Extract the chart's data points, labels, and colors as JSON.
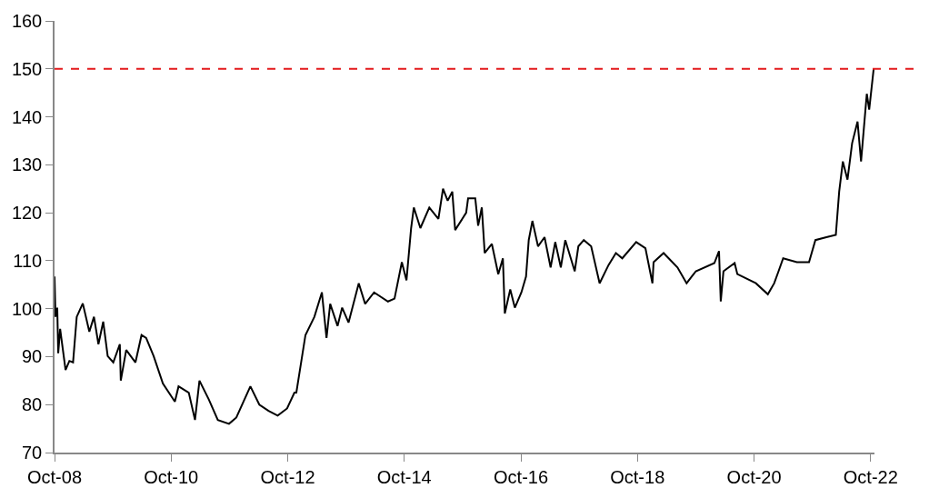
{
  "chart_data": {
    "type": "line",
    "x": [
      "2008-10-01",
      "2008-10-07",
      "2008-10-18",
      "2008-10-24",
      "2008-11-05",
      "2008-12-09",
      "2009-01-02",
      "2009-01-25",
      "2009-02-17",
      "2009-03-27",
      "2009-05-07",
      "2009-06-05",
      "2009-07-03",
      "2009-08-02",
      "2009-08-30",
      "2009-10-04",
      "2009-11-14",
      "2009-11-20",
      "2009-12-24",
      "2010-02-20",
      "2010-03-30",
      "2010-04-28",
      "2010-06-14",
      "2010-08-11",
      "2010-10-25",
      "2010-11-17",
      "2011-01-20",
      "2011-02-28",
      "2011-03-28",
      "2011-05-25",
      "2011-07-21",
      "2011-09-29",
      "2011-11-14",
      "2012-02-10",
      "2012-04-06",
      "2012-06-03",
      "2012-07-30",
      "2012-09-27",
      "2012-11-12",
      "2012-11-24",
      "2013-01-20",
      "2013-03-17",
      "2013-05-03",
      "2013-06-01",
      "2013-06-24",
      "2013-08-09",
      "2013-09-07",
      "2013-10-17",
      "2013-12-20",
      "2014-01-29",
      "2014-03-26",
      "2014-06-21",
      "2014-08-01",
      "2014-09-16",
      "2014-10-15",
      "2014-11-13",
      "2014-11-30",
      "2015-01-10",
      "2015-03-07",
      "2015-05-03",
      "2015-06-01",
      "2015-06-30",
      "2015-07-29",
      "2015-08-16",
      "2015-10-24",
      "2015-11-05",
      "2015-12-20",
      "2016-01-07",
      "2016-01-30",
      "2016-02-17",
      "2016-04-02",
      "2016-05-12",
      "2016-06-10",
      "2016-06-22",
      "2016-07-26",
      "2016-08-24",
      "2016-10-04",
      "2016-11-02",
      "2016-11-19",
      "2016-12-12",
      "2017-01-16",
      "2017-02-26",
      "2017-04-05",
      "2017-05-04",
      "2017-06-08",
      "2017-07-06",
      "2017-09-03",
      "2017-09-26",
      "2017-10-30",
      "2017-12-15",
      "2018-02-06",
      "2018-04-03",
      "2018-05-19",
      "2018-06-28",
      "2018-09-23",
      "2018-11-20",
      "2019-01-03",
      "2019-01-10",
      "2019-03-14",
      "2019-06-09",
      "2019-08-05",
      "2019-10-02",
      "2020-01-26",
      "2020-02-24",
      "2020-03-06",
      "2020-03-23",
      "2020-06-01",
      "2020-06-18",
      "2020-10-12",
      "2020-12-26",
      "2021-02-04",
      "2021-03-03",
      "2021-04-01",
      "2021-06-26",
      "2021-09-10",
      "2021-10-20",
      "2021-12-28",
      "2022-02-25",
      "2022-03-18",
      "2022-04-10",
      "2022-05-09",
      "2022-06-07",
      "2022-07-11",
      "2022-08-02",
      "2022-09-07",
      "2022-09-22",
      "2022-10-20"
    ],
    "series": [
      {
        "color": "#000000",
        "values": [
          106.7,
          98.3,
          100.2,
          90.7,
          95.8,
          87.2,
          89.1,
          88.8,
          98.3,
          101.1,
          95.2,
          98.3,
          92.6,
          97.3,
          90.1,
          88.8,
          92.6,
          85.0,
          91.4,
          88.8,
          94.5,
          93.9,
          90.1,
          84.4,
          80.6,
          83.8,
          82.5,
          76.8,
          85.0,
          81.1,
          76.8,
          76.0,
          77.3,
          83.8,
          80.0,
          78.7,
          77.7,
          79.2,
          82.5,
          82.5,
          94.5,
          98.3,
          103.4,
          93.9,
          101.0,
          96.4,
          100.2,
          97.1,
          105.3,
          101.0,
          103.4,
          101.5,
          102.1,
          109.7,
          105.9,
          116.8,
          121.1,
          116.8,
          121.1,
          118.7,
          125.0,
          122.5,
          124.4,
          116.4,
          120.0,
          123.0,
          123.0,
          117.3,
          121.1,
          111.6,
          113.5,
          107.2,
          110.5,
          99.0,
          104.0,
          100.2,
          103.4,
          106.7,
          114.3,
          118.3,
          113.0,
          114.9,
          108.6,
          113.9,
          108.6,
          114.3,
          107.8,
          113.0,
          114.3,
          113.0,
          105.3,
          109.1,
          111.6,
          110.5,
          113.9,
          112.6,
          105.3,
          109.7,
          111.6,
          108.6,
          105.3,
          107.8,
          109.5,
          112.0,
          101.5,
          107.8,
          109.5,
          107.2,
          105.3,
          103.0,
          105.3,
          107.8,
          110.5,
          109.7,
          109.7,
          114.3,
          114.9,
          115.4,
          124.4,
          130.7,
          126.9,
          134.5,
          139.0,
          130.7,
          144.8,
          141.5,
          150.0
        ]
      }
    ],
    "xlim": [
      "2008-10-01",
      "2022-10-25"
    ],
    "xticks": [
      {
        "value": "2008-10-01",
        "label": "Oct-08"
      },
      {
        "value": "2010-10-01",
        "label": "Oct-10"
      },
      {
        "value": "2012-10-01",
        "label": "Oct-12"
      },
      {
        "value": "2014-10-01",
        "label": "Oct-14"
      },
      {
        "value": "2016-10-01",
        "label": "Oct-16"
      },
      {
        "value": "2018-10-01",
        "label": "Oct-18"
      },
      {
        "value": "2020-10-01",
        "label": "Oct-20"
      },
      {
        "value": "2022-10-01",
        "label": "Oct-22"
      }
    ],
    "ylim": [
      70,
      160
    ],
    "yticks": [
      70,
      80,
      90,
      100,
      110,
      120,
      130,
      140,
      150,
      160
    ],
    "ref_lines": [
      {
        "axis": "y",
        "value": 150,
        "color": "#e31a1c",
        "line_style": "dashed"
      }
    ],
    "marker": "none",
    "line_style": "solid"
  }
}
